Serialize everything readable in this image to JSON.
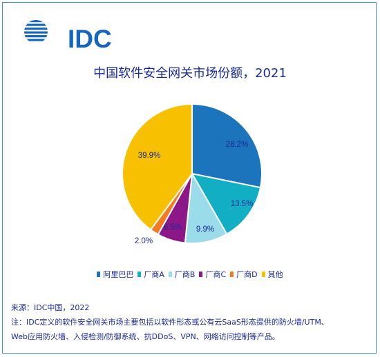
{
  "brand": {
    "logo_text": "IDC",
    "color": "#1565c0"
  },
  "chart_data": {
    "type": "pie",
    "title": "中国软件安全网关市场份额，2021",
    "categories": [
      "阿里巴巴",
      "厂商A",
      "厂商B",
      "厂商C",
      "厂商D",
      "其他"
    ],
    "values": [
      28.2,
      13.5,
      9.9,
      6.5,
      2.0,
      39.9
    ],
    "labels": [
      "28.2%",
      "13.5%",
      "9.9%",
      "6.5%",
      "2.0%",
      "39.9%"
    ],
    "colors": [
      "#1c75bc",
      "#12afc4",
      "#9adcea",
      "#8c1887",
      "#f47b20",
      "#f7c000"
    ],
    "start_angle_deg": 0,
    "direction": "clockwise",
    "legend_position": "bottom"
  },
  "notes": {
    "source": "来源：IDC中国，2022",
    "note_line1": "注：IDC定义的软件安全网关市场主要包括以软件形态或公有云SaaS形态提供的防火墙/UTM、",
    "note_line2": "Web应用防火墙、入侵检测/防御系统、抗DDoS、VPN、网络访问控制等产品。"
  }
}
